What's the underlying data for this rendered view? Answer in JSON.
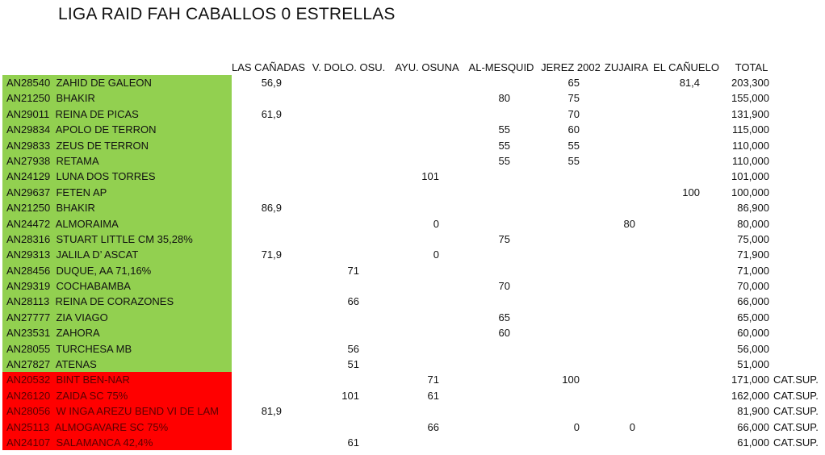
{
  "title": "LIGA RAID FAH CABALLOS 0 ESTRELLAS",
  "headers": [
    "LAS CAÑADAS",
    "V. DOLO. OSU.",
    "AYU. OSUNA",
    "AL-MESQUID",
    "JEREZ 2002",
    "ZUJAIRA",
    "EL CAÑUELO",
    "TOTAL"
  ],
  "colors": {
    "green": "#92d050",
    "red": "#ff0000"
  },
  "rows": [
    {
      "status": "green",
      "code": "AN28540",
      "name": "ZAHID DE GALEON",
      "vals": [
        "56,9",
        "",
        "",
        "",
        "65",
        "",
        "81,4"
      ],
      "total": "203,300",
      "note": ""
    },
    {
      "status": "green",
      "code": "AN21250",
      "name": "BHAKIR",
      "vals": [
        "",
        "",
        "",
        "80",
        "75",
        "",
        ""
      ],
      "total": "155,000",
      "note": ""
    },
    {
      "status": "green",
      "code": "AN29011",
      "name": "REINA DE PICAS",
      "vals": [
        "61,9",
        "",
        "",
        "",
        "70",
        "",
        ""
      ],
      "total": "131,900",
      "note": ""
    },
    {
      "status": "green",
      "code": "AN29834",
      "name": "APOLO DE TERRON",
      "vals": [
        "",
        "",
        "",
        "55",
        "60",
        "",
        ""
      ],
      "total": "115,000",
      "note": ""
    },
    {
      "status": "green",
      "code": "AN29833",
      "name": "ZEUS DE TERRON",
      "vals": [
        "",
        "",
        "",
        "55",
        "55",
        "",
        ""
      ],
      "total": "110,000",
      "note": ""
    },
    {
      "status": "green",
      "code": "AN27938",
      "name": "RETAMA",
      "vals": [
        "",
        "",
        "",
        "55",
        "55",
        "",
        ""
      ],
      "total": "110,000",
      "note": ""
    },
    {
      "status": "green",
      "code": "AN24129",
      "name": "LUNA DOS TORRES",
      "vals": [
        "",
        "",
        "101",
        "",
        "",
        "",
        ""
      ],
      "total": "101,000",
      "note": ""
    },
    {
      "status": "green",
      "code": "AN29637",
      "name": "FETEN AP",
      "vals": [
        "",
        "",
        "",
        "",
        "",
        "",
        "100"
      ],
      "total": "100,000",
      "note": ""
    },
    {
      "status": "green",
      "code": "AN21250",
      "name": "BHAKIR",
      "vals": [
        "86,9",
        "",
        "",
        "",
        "",
        "",
        ""
      ],
      "total": "86,900",
      "note": ""
    },
    {
      "status": "green",
      "code": "AN24472",
      "name": "ALMORAIMA",
      "vals": [
        "",
        "",
        "0",
        "",
        "",
        "80",
        ""
      ],
      "total": "80,000",
      "note": ""
    },
    {
      "status": "green",
      "code": "AN28316",
      "name": "STUART LITTLE CM 35,28%",
      "vals": [
        "",
        "",
        "",
        "75",
        "",
        "",
        ""
      ],
      "total": "75,000",
      "note": ""
    },
    {
      "status": "green",
      "code": "AN29313",
      "name": "JALILA D’ ASCAT",
      "vals": [
        "71,9",
        "",
        "0",
        "",
        "",
        "",
        ""
      ],
      "total": "71,900",
      "note": ""
    },
    {
      "status": "green",
      "code": "AN28456",
      "name": "DUQUE, AA 71,16%",
      "vals": [
        "",
        "71",
        "",
        "",
        "",
        "",
        ""
      ],
      "total": "71,000",
      "note": ""
    },
    {
      "status": "green",
      "code": "AN29319",
      "name": "COCHABAMBA",
      "vals": [
        "",
        "",
        "",
        "70",
        "",
        "",
        ""
      ],
      "total": "70,000",
      "note": ""
    },
    {
      "status": "green",
      "code": "AN28113",
      "name": "REINA DE CORAZONES",
      "vals": [
        "",
        "66",
        "",
        "",
        "",
        "",
        ""
      ],
      "total": "66,000",
      "note": ""
    },
    {
      "status": "green",
      "code": "AN27777",
      "name": "ZIA VIAGO",
      "vals": [
        "",
        "",
        "",
        "65",
        "",
        "",
        ""
      ],
      "total": "65,000",
      "note": ""
    },
    {
      "status": "green",
      "code": "AN23531",
      "name": "ZAHORA",
      "vals": [
        "",
        "",
        "",
        "60",
        "",
        "",
        ""
      ],
      "total": "60,000",
      "note": ""
    },
    {
      "status": "green",
      "code": "AN28055",
      "name": "TURCHESA MB",
      "vals": [
        "",
        "56",
        "",
        "",
        "",
        "",
        ""
      ],
      "total": "56,000",
      "note": ""
    },
    {
      "status": "green",
      "code": "AN27827",
      "name": "ATENAS",
      "vals": [
        "",
        "51",
        "",
        "",
        "",
        "",
        ""
      ],
      "total": "51,000",
      "note": ""
    },
    {
      "status": "red",
      "code": "AN20532",
      "name": "BINT BEN-NAR",
      "vals": [
        "",
        "",
        "71",
        "",
        "100",
        "",
        ""
      ],
      "total": "171,000",
      "note": "CAT.SUP."
    },
    {
      "status": "red",
      "code": "AN26120",
      "name": "ZAIDA SC 75%",
      "vals": [
        "",
        "101",
        "61",
        "",
        "",
        "",
        ""
      ],
      "total": "162,000",
      "note": "CAT.SUP."
    },
    {
      "status": "red",
      "code": "AN28056",
      "name": "W INGA AREZU BEND VI DE LAM",
      "vals": [
        "81,9",
        "",
        "",
        "",
        "",
        "",
        ""
      ],
      "total": "81,900",
      "note": "CAT.SUP."
    },
    {
      "status": "red",
      "code": "AN25113",
      "name": "ALMOGAVARE SC 75%",
      "vals": [
        "",
        "",
        "66",
        "",
        "0",
        "0",
        ""
      ],
      "total": "66,000",
      "note": "CAT.SUP."
    },
    {
      "status": "red",
      "code": "AN24107",
      "name": "SALAMANCA 42,4%",
      "vals": [
        "",
        "61",
        "",
        "",
        "",
        "",
        ""
      ],
      "total": "61,000",
      "note": "CAT.SUP."
    }
  ]
}
